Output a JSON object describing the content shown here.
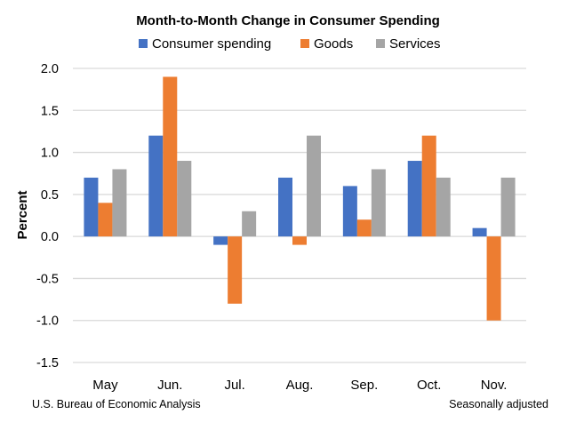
{
  "chart_data": {
    "type": "bar",
    "title": "Month-to-Month Change in Consumer Spending",
    "ylabel": "Percent",
    "xlabel": "",
    "ylim": [
      -1.5,
      2.0
    ],
    "yticks": [
      "2.0",
      "1.5",
      "1.0",
      "0.5",
      "0.0",
      "-0.5",
      "-1.0",
      "-1.5"
    ],
    "ytick_values": [
      2.0,
      1.5,
      1.0,
      0.5,
      0.0,
      -0.5,
      -1.0,
      -1.5
    ],
    "grid": true,
    "legend_position": "top",
    "categories": [
      "May",
      "Jun.",
      "Jul.",
      "Aug.",
      "Sep.",
      "Oct.",
      "Nov."
    ],
    "series": [
      {
        "name": "Consumer spending",
        "color": "#4472C4",
        "values": [
          0.7,
          1.2,
          -0.1,
          0.7,
          0.6,
          0.9,
          0.1
        ]
      },
      {
        "name": "Goods",
        "color": "#ED7D31",
        "values": [
          0.4,
          1.9,
          -0.8,
          -0.1,
          0.2,
          1.2,
          -1.0
        ]
      },
      {
        "name": "Services",
        "color": "#A5A5A5",
        "values": [
          0.8,
          0.9,
          0.3,
          1.2,
          0.8,
          0.7,
          0.7
        ]
      }
    ],
    "footnote_left": "U.S. Bureau of Economic Analysis",
    "footnote_right": "Seasonally adjusted"
  }
}
